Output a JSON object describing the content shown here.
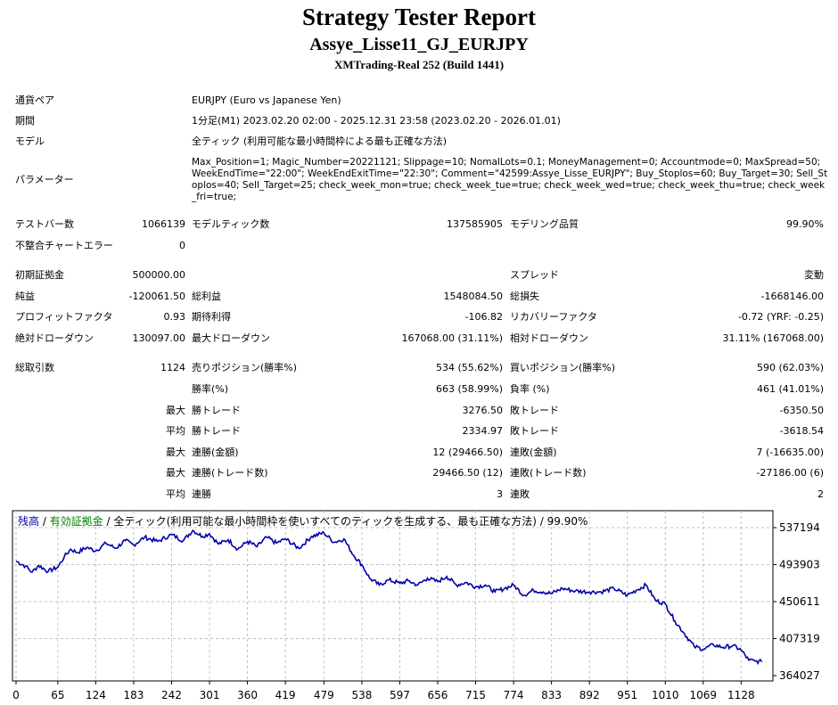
{
  "header": {
    "title": "Strategy Tester Report",
    "ea_name": "Assye_Lisse11_GJ_EURJPY",
    "server": "XMTrading-Real 252 (Build 1441)"
  },
  "info": {
    "pair_label": "通貨ペア",
    "pair_value": "EURJPY (Euro vs Japanese Yen)",
    "period_label": "期間",
    "period_value": "1分足(M1) 2023.02.20 02:00 - 2025.12.31 23:58 (2023.02.20 - 2026.01.01)",
    "model_label": "モデル",
    "model_value": "全ティック (利用可能な最小時間枠による最も正確な方法)",
    "params_label": "パラメーター",
    "params_value": "Max_Position=1; Magic_Number=20221121; Slippage=10; NomalLots=0.1; MoneyManagement=0; Accountmode=0; MaxSpread=50; WeekEndTime=\"22:00\"; WeekEndExitTime=\"22:30\"; Comment=\"42599:Assye_Lisse_EURJPY\"; Buy_Stoplos=60; Buy_Target=30; Sell_Stoplos=40; Sell_Target=25; check_week_mon=true; check_week_tue=true; check_week_wed=true; check_week_thu=true; check_week_fri=true;"
  },
  "stats": {
    "bars_label": "テストバー数",
    "bars_value": "1066139",
    "ticks_label": "モデルティック数",
    "ticks_value": "137585905",
    "quality_label": "モデリング品質",
    "quality_value": "99.90%",
    "mismatch_label": "不整合チャートエラー",
    "mismatch_value": "0",
    "deposit_label": "初期証拠金",
    "deposit_value": "500000.00",
    "spread_label": "スプレッド",
    "spread_value": "変動",
    "net_label": "純益",
    "net_value": "-120061.50",
    "gross_profit_label": "総利益",
    "gross_profit_value": "1548084.50",
    "gross_loss_label": "総損失",
    "gross_loss_value": "-1668146.00",
    "pf_label": "プロフィットファクタ",
    "pf_value": "0.93",
    "expected_label": "期待利得",
    "expected_value": "-106.82",
    "recovery_label": "リカバリーファクタ",
    "recovery_value": "-0.72 (YRF: -0.25)",
    "abs_dd_label": "絶対ドローダウン",
    "abs_dd_value": "130097.00",
    "max_dd_label": "最大ドローダウン",
    "max_dd_value": "167068.00 (31.11%)",
    "rel_dd_label": "相対ドローダウン",
    "rel_dd_value": "31.11% (167068.00)",
    "trades_label": "総取引数",
    "trades_value": "1124",
    "short_label": "売りポジション(勝率%)",
    "short_value": "534 (55.62%)",
    "long_label": "買いポジション(勝率%)",
    "long_value": "590 (62.03%)",
    "winrate_label": "勝率(%)",
    "winrate_value": "663 (58.99%)",
    "lossrate_label": "負率 (%)",
    "lossrate_value": "461 (41.01%)",
    "max_word": "最大",
    "avg_word": "平均",
    "largest_win_label": "勝トレード",
    "largest_win_value": "3276.50",
    "largest_loss_label": "敗トレード",
    "largest_loss_value": "-6350.50",
    "avg_win_label": "勝トレード",
    "avg_win_value": "2334.97",
    "avg_loss_label": "敗トレード",
    "avg_loss_value": "-3618.54",
    "cons_win_amt_label": "連勝(金額)",
    "cons_win_amt_value": "12 (29466.50)",
    "cons_loss_amt_label": "連敗(金額)",
    "cons_loss_amt_value": "7 (-16635.00)",
    "cons_profit_label": "連勝(トレード数)",
    "cons_profit_value": "29466.50 (12)",
    "cons_loss_cnt_label": "連敗(トレード数)",
    "cons_loss_cnt_value": "-27186.00 (6)",
    "avg_cons_win_label": "連勝",
    "avg_cons_win_value": "3",
    "avg_cons_loss_label": "連敗",
    "avg_cons_loss_value": "2"
  },
  "chart_data": {
    "type": "line",
    "legend": {
      "balance": "残高",
      "sep": " / ",
      "equity": "有効証拠金",
      "desc": " / 全ティック(利用可能な最小時間枠を使いすべてのティックを生成する、最も正確な方法) / 99.90%"
    },
    "x_ticks": [
      "0",
      "65",
      "124",
      "183",
      "242",
      "301",
      "360",
      "419",
      "479",
      "538",
      "597",
      "656",
      "715",
      "774",
      "833",
      "892",
      "951",
      "1010",
      "1069",
      "1128"
    ],
    "y_ticks": [
      "537194",
      "493903",
      "450611",
      "407319",
      "364027"
    ],
    "x_range": [
      0,
      1165
    ],
    "y_range": [
      364027,
      537194
    ],
    "grid": true,
    "colors": {
      "line": "#0000a8",
      "balance_text": "#0000a8",
      "equity_text": "#008000",
      "grid": "#c0c0c0"
    },
    "series": [
      {
        "name": "残高",
        "x": [
          0,
          15,
          25,
          35,
          50,
          65,
          75,
          85,
          95,
          110,
          124,
          140,
          155,
          170,
          183,
          200,
          220,
          242,
          260,
          275,
          290,
          301,
          315,
          330,
          345,
          360,
          375,
          390,
          405,
          419,
          440,
          460,
          479,
          495,
          510,
          525,
          538,
          550,
          565,
          580,
          597,
          610,
          625,
          640,
          656,
          670,
          685,
          700,
          715,
          730,
          745,
          760,
          774,
          790,
          805,
          820,
          833,
          850,
          870,
          892,
          910,
          930,
          951,
          965,
          980,
          995,
          1010,
          1025,
          1040,
          1055,
          1069,
          1085,
          1100,
          1115,
          1128,
          1140,
          1150,
          1160
        ],
        "y": [
          498000,
          492000,
          485000,
          493000,
          486000,
          491000,
          503000,
          512000,
          508000,
          514000,
          510000,
          519000,
          513000,
          522000,
          517000,
          526000,
          521000,
          529000,
          522000,
          534000,
          527000,
          530000,
          518000,
          523000,
          512000,
          521000,
          515000,
          526000,
          519000,
          524000,
          513000,
          527000,
          531000,
          520000,
          524000,
          505000,
          494000,
          478000,
          470000,
          476000,
          472000,
          475000,
          470000,
          478000,
          474000,
          480000,
          470000,
          473000,
          468000,
          470000,
          462000,
          466000,
          470000,
          458000,
          464000,
          462000,
          460000,
          466000,
          463000,
          462000,
          462000,
          466000,
          458000,
          464000,
          470000,
          452000,
          448000,
          428000,
          413000,
          398000,
          395000,
          400000,
          397000,
          399000,
          394000,
          382000,
          381000,
          380000
        ]
      }
    ]
  }
}
